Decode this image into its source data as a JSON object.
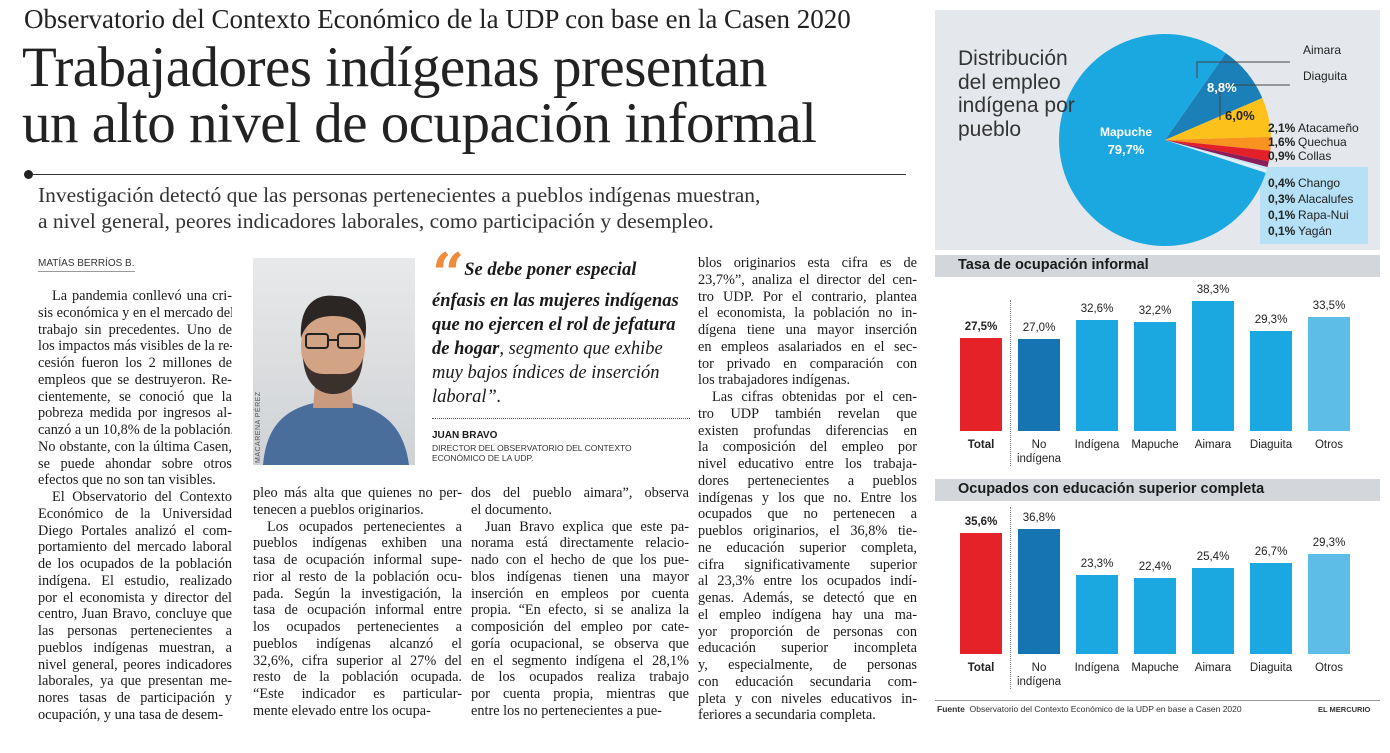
{
  "article": {
    "kicker": "Observatorio del Contexto Económico de la UDP con base en la Casen 2020",
    "headline_lines": [
      "Trabajadores indígenas presentan",
      "un alto nivel de ocupación informal"
    ],
    "subtitle_lines": [
      "Investigación detectó que las personas pertenecientes a pueblos indígenas muestran,",
      "a nivel general, peores indicadores laborales, como participación y desempleo."
    ],
    "byline": "MATÍAS BERRÍOS B.",
    "photo_credit": "MACARENA PÉREZ",
    "quote": {
      "bold": "Se debe poner especial énfasis en las mujeres indígenas que no ejercen el rol de jefatura de hogar",
      "regular": ", segmento que exhibe muy bajos índices de inserción laboral”.",
      "mark": "“"
    },
    "attribution": {
      "name": "JUAN BRAVO",
      "role": "DIRECTOR DEL OBSERVATORIO DEL CONTEXTO ECONÓMICO DE LA UDP."
    },
    "columns": [
      [
        [
          "La pandemia conllevó una cri-",
          "sis económica y en el mercado del",
          "trabajo sin precedentes. Uno de",
          "los impactos más visibles de la re-",
          "cesión fueron los 2 millones de",
          "empleos que se destruyeron. Re-",
          "cientemente, se conoció que la",
          "pobreza medida por ingresos al-",
          "canzó a un 10,8% de la población.",
          "No obstante, con la última Casen,",
          "se puede ahondar sobre otros",
          "efectos que no son tan visibles."
        ],
        [
          "El Observatorio del Contexto",
          "Económico de la Universidad",
          "Diego Portales analizó el com-",
          "portamiento del mercado laboral",
          "de los ocupados de la población",
          "indígena. El estudio, realizado",
          "por el economista y director del",
          "centro, Juan Bravo, concluye que",
          "las personas pertenecientes a",
          "pueblos indígenas muestran, a",
          "nivel general, peores indicadores",
          "laborales, ya que presentan me-",
          "nores tasas de participación y",
          "ocupación, y una tasa de desem-"
        ]
      ],
      [
        [
          "pleo más alta que quienes no per-",
          "tenecen a pueblos originarios."
        ],
        [
          "Los ocupados pertenecientes a",
          "pueblos indígenas exhiben una",
          "tasa de ocupación informal supe-",
          "rior al resto de la población ocu-",
          "pada. Según la investigación, la",
          "tasa de ocupación informal entre",
          "los ocupados pertenecientes a",
          "pueblos indígenas alcanzó el",
          "32,6%, cifra superior al 27% del",
          "resto de la población ocupada.",
          "“Este indicador es particular-",
          "mente elevado entre los ocupa-"
        ]
      ],
      [
        [
          "dos del pueblo aimara”, observa",
          "el documento."
        ],
        [
          "Juan Bravo explica que este pa-",
          "norama está directamente relacio-",
          "nado con el hecho de que los pue-",
          "blos indígenas tienen una mayor",
          "inserción en empleos por cuenta",
          "propia. “En efecto, si se analiza la",
          "composición del empleo por cate-",
          "goría ocupacional, se observa que",
          "en el segmento indígena el 28,1%",
          "de los ocupados realiza trabajo",
          "por cuenta propia, mientras que",
          "entre los no pertenecientes a pue-"
        ]
      ],
      [
        [
          "blos originarios esta cifra es de",
          "23,7%”, analiza el director del cen-",
          "tro UDP. Por el contrario, plantea",
          "el economista, la población no in-",
          "dígena tiene una mayor inserción",
          "en empleos asalariados en el sec-",
          "tor privado en comparación con",
          "los trabajadores indígenas."
        ],
        [
          "Las cifras obtenidas por el cen-",
          "tro UDP también revelan que",
          "existen profundas diferencias en",
          "la composición del empleo por",
          "nivel educativo entre los trabaja-",
          "dores pertenecientes a pueblos",
          "indígenas y los que no. Entre los",
          "ocupados que no pertenecen a",
          "pueblos originarios, el 36,8% tie-",
          "ne educación superior completa,",
          "cifra significativamente superior",
          "al 23,3% entre los ocupados indí-",
          "genas. Además, se detectó que en",
          "el empleo indígena hay una ma-",
          "yor proporción de personas con",
          "educación superior incompleta",
          "y, especialmente, de personas",
          "con educación secundaria com-",
          "pleta y con niveles educativos in-",
          "feriores a secundaria completa."
        ]
      ]
    ]
  },
  "chart_data": [
    {
      "type": "pie",
      "title": "Distribución del empleo indígena por pueblo",
      "slices": [
        {
          "label": "Aimara",
          "value": 8.8,
          "display": "8,8%",
          "color": "#1b7fb8"
        },
        {
          "label": "Diaguita",
          "value": 6.0,
          "display": "6,0%",
          "color": "#fcc21b"
        },
        {
          "label": "Atacameño",
          "value": 2.1,
          "display": "2,1%",
          "color": "#f7931e"
        },
        {
          "label": "Quechua",
          "value": 1.6,
          "display": "1,6%",
          "color": "#e3202a"
        },
        {
          "label": "Collas",
          "value": 0.9,
          "display": "0,9%",
          "color": "#8b1d5a"
        },
        {
          "label": "Chango",
          "value": 0.4,
          "display": "0,4%",
          "color": "#c9e6f5"
        },
        {
          "label": "Alacalufes",
          "value": 0.3,
          "display": "0,3%",
          "color": "#e8f3fa"
        },
        {
          "label": "Rapa-Nui",
          "value": 0.1,
          "display": "0,1%",
          "color": "#c9e6f5"
        },
        {
          "label": "Yagán",
          "value": 0.1,
          "display": "0,1%",
          "color": "#e8f3fa"
        },
        {
          "label": "Mapuche",
          "value": 79.7,
          "display": "79,7%",
          "color": "#1ba8e0"
        }
      ]
    },
    {
      "type": "bar",
      "title": "Tasa de ocupación informal",
      "categories": [
        "Total",
        "No indígena",
        "Indígena",
        "Mapuche",
        "Aimara",
        "Diaguita",
        "Otros"
      ],
      "values": [
        27.5,
        27.0,
        32.6,
        32.2,
        38.3,
        29.3,
        33.5
      ],
      "labels": [
        "27,5%",
        "27,0%",
        "32,6%",
        "32,2%",
        "38,3%",
        "29,3%",
        "33,5%"
      ],
      "colors": [
        "#e42228",
        "#1674b3",
        "#1ba8e0",
        "#1ba8e0",
        "#1ba8e0",
        "#1ba8e0",
        "#5dbde6"
      ]
    },
    {
      "type": "bar",
      "title": "Ocupados con educación superior completa",
      "categories": [
        "Total",
        "No indígena",
        "Indígena",
        "Mapuche",
        "Aimara",
        "Diaguita",
        "Otros"
      ],
      "values": [
        35.6,
        36.8,
        23.3,
        22.4,
        25.4,
        26.7,
        29.3
      ],
      "labels": [
        "35,6%",
        "36,8%",
        "23,3%",
        "22,4%",
        "25,4%",
        "26,7%",
        "29,3%"
      ],
      "colors": [
        "#e42228",
        "#1674b3",
        "#1ba8e0",
        "#1ba8e0",
        "#1ba8e0",
        "#1ba8e0",
        "#5dbde6"
      ]
    }
  ],
  "footer": {
    "source_label": "Fuente",
    "source_text": "Observatorio del Contexto Económico de la UDP en base a Casen 2020",
    "brand": "EL MERCURIO"
  }
}
